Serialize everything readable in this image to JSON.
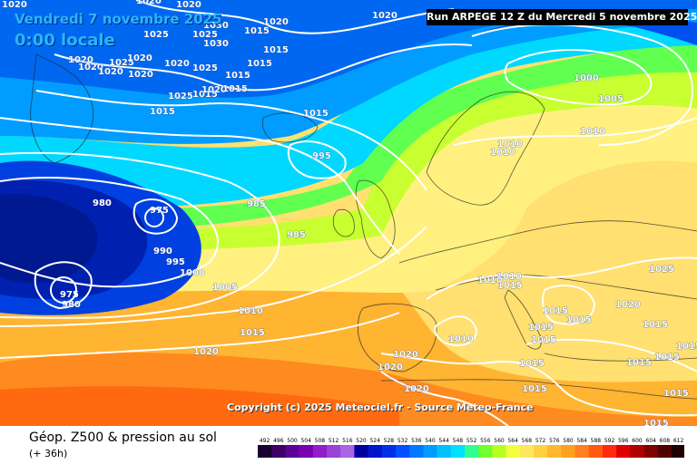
{
  "map": {
    "valid_date": "Vendredi 7 novembre 2025",
    "valid_time": "0:00 locale",
    "run_info": "Run ARPEGE 12 Z du Mercredi 5 novembre 2025",
    "copyright": "Copyright (c) 2025 Meteociel.fr - Source Meteo-France",
    "top_left_fragment": "1020",
    "pressure_labels": [
      {
        "id": "p1",
        "text": "1020"
      },
      {
        "id": "p2",
        "text": "1025"
      },
      {
        "id": "p3",
        "text": "1030"
      },
      {
        "id": "p4",
        "text": "1015"
      },
      {
        "id": "p5",
        "text": "1020"
      },
      {
        "id": "p6",
        "text": "1020"
      },
      {
        "id": "p7",
        "text": "1025"
      },
      {
        "id": "p8",
        "text": "1030"
      },
      {
        "id": "p9",
        "text": "1015"
      },
      {
        "id": "p10",
        "text": "1020"
      },
      {
        "id": "p11",
        "text": "1020"
      },
      {
        "id": "p12",
        "text": "1025"
      },
      {
        "id": "p13",
        "text": "1020"
      },
      {
        "id": "p14",
        "text": "1020"
      },
      {
        "id": "p15",
        "text": "1025"
      },
      {
        "id": "p16",
        "text": "1020"
      },
      {
        "id": "p17",
        "text": "1015"
      },
      {
        "id": "p18",
        "text": "1020"
      },
      {
        "id": "p19",
        "text": "1020"
      },
      {
        "id": "p20",
        "text": "1015"
      },
      {
        "id": "p21",
        "text": "1025"
      },
      {
        "id": "p22",
        "text": "1015"
      },
      {
        "id": "p23",
        "text": "1020"
      },
      {
        "id": "p24",
        "text": "1015"
      },
      {
        "id": "p25",
        "text": "1015"
      },
      {
        "id": "p26",
        "text": "1015"
      },
      {
        "id": "p27",
        "text": "1000"
      },
      {
        "id": "p28",
        "text": "1005"
      },
      {
        "id": "p29",
        "text": "1010"
      },
      {
        "id": "p30",
        "text": "1010"
      },
      {
        "id": "p31",
        "text": "1010"
      },
      {
        "id": "p32",
        "text": "995"
      },
      {
        "id": "p33",
        "text": "980"
      },
      {
        "id": "p34",
        "text": "975"
      },
      {
        "id": "p35",
        "text": "985"
      },
      {
        "id": "p36",
        "text": "985"
      },
      {
        "id": "p37",
        "text": "990"
      },
      {
        "id": "p38",
        "text": "995"
      },
      {
        "id": "p39",
        "text": "1000"
      },
      {
        "id": "p40",
        "text": "975"
      },
      {
        "id": "p41",
        "text": "980"
      },
      {
        "id": "p42",
        "text": "1005"
      },
      {
        "id": "p43",
        "text": "1010"
      },
      {
        "id": "p44",
        "text": "1015"
      },
      {
        "id": "p45",
        "text": "1020"
      },
      {
        "id": "p46",
        "text": "1020"
      },
      {
        "id": "p47",
        "text": "1020"
      },
      {
        "id": "p48",
        "text": "1020"
      },
      {
        "id": "p49",
        "text": "1010"
      },
      {
        "id": "p50",
        "text": "1010"
      },
      {
        "id": "p51",
        "text": "1015"
      },
      {
        "id": "p52",
        "text": "1010"
      },
      {
        "id": "p53",
        "text": "1015"
      },
      {
        "id": "p54",
        "text": "1015"
      },
      {
        "id": "p55",
        "text": "1015"
      },
      {
        "id": "p56",
        "text": "1015"
      },
      {
        "id": "p57",
        "text": "1025"
      },
      {
        "id": "p58",
        "text": "1020"
      },
      {
        "id": "p59",
        "text": "1015"
      },
      {
        "id": "p60",
        "text": "1015"
      },
      {
        "id": "p61",
        "text": "1015"
      },
      {
        "id": "p62",
        "text": "1015"
      },
      {
        "id": "p63",
        "text": "1015"
      },
      {
        "id": "p64",
        "text": "1015"
      },
      {
        "id": "p65",
        "text": "1015"
      },
      {
        "id": "p66",
        "text": "1015"
      }
    ]
  },
  "legend": {
    "title": "Géop. Z500 & pression au sol",
    "subtitle": "(+ 36h)",
    "ticks": [
      "492",
      "496",
      "500",
      "504",
      "508",
      "512",
      "516",
      "520",
      "524",
      "528",
      "532",
      "536",
      "540",
      "544",
      "548",
      "552",
      "556",
      "560",
      "564",
      "568",
      "572",
      "576",
      "580",
      "584",
      "588",
      "592",
      "596",
      "600",
      "604",
      "608",
      "612"
    ],
    "colors": [
      "#1a0033",
      "#3d0066",
      "#5c0099",
      "#7a00b3",
      "#8f1fc7",
      "#9a44d6",
      "#aa66e0",
      "#0000a0",
      "#0014c8",
      "#0030e6",
      "#0050ff",
      "#0078ff",
      "#009cff",
      "#00c0ff",
      "#00e0ff",
      "#30ff90",
      "#70ff30",
      "#b8ff20",
      "#f0ff40",
      "#ffe660",
      "#ffd040",
      "#ffb830",
      "#ffa020",
      "#ff8020",
      "#ff5a10",
      "#ff2a10",
      "#e00000",
      "#b00000",
      "#800000",
      "#500000",
      "#200000"
    ]
  }
}
